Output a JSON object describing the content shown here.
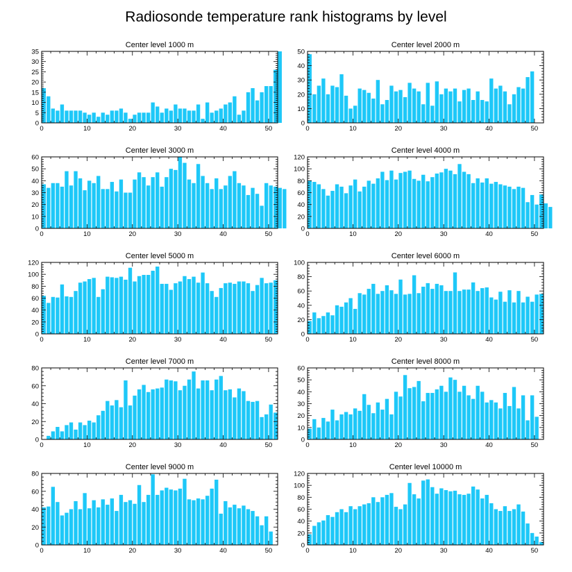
{
  "title": "Radiosonde temperature rank histograms by level",
  "colors": {
    "bar": "#1ec8f8",
    "axis": "#000000"
  },
  "chart_data": [
    {
      "type": "bar",
      "title": "Center level 1000 m",
      "xlim": [
        0,
        52
      ],
      "ylim": [
        0,
        35
      ],
      "xticks": [
        0,
        10,
        20,
        30,
        40,
        50
      ],
      "yticks": [
        0,
        5,
        10,
        15,
        20,
        25,
        30,
        35
      ],
      "values": [
        17,
        13,
        7,
        6,
        9,
        6,
        6,
        6,
        6,
        5,
        4,
        5,
        3,
        5,
        4,
        6,
        6,
        7,
        5,
        2,
        4,
        5,
        5,
        5,
        10,
        8,
        5,
        7,
        6,
        9,
        7,
        7,
        6,
        6,
        9,
        2,
        10,
        5,
        6,
        7,
        9,
        10,
        13,
        4,
        6,
        15,
        17,
        11,
        15,
        18,
        18,
        26,
        35
      ]
    },
    {
      "type": "bar",
      "title": "Center level 2000 m",
      "xlim": [
        0,
        52
      ],
      "ylim": [
        0,
        50
      ],
      "xticks": [
        0,
        10,
        20,
        30,
        40,
        50
      ],
      "yticks": [
        0,
        10,
        20,
        30,
        40,
        50
      ],
      "values": [
        48,
        20,
        26,
        31,
        20,
        26,
        25,
        34,
        19,
        10,
        12,
        24,
        23,
        21,
        17,
        30,
        13,
        16,
        26,
        22,
        23,
        18,
        28,
        24,
        22,
        13,
        28,
        12,
        29,
        20,
        24,
        22,
        24,
        15,
        23,
        24,
        16,
        22,
        16,
        15,
        31,
        24,
        26,
        22,
        13,
        20,
        25,
        24,
        32,
        36
      ]
    },
    {
      "type": "bar",
      "title": "Center level 3000 m",
      "xlim": [
        0,
        52
      ],
      "ylim": [
        0,
        60
      ],
      "xticks": [
        0,
        10,
        20,
        30,
        40,
        50
      ],
      "yticks": [
        0,
        10,
        20,
        30,
        40,
        50,
        60
      ],
      "values": [
        37,
        34,
        38,
        38,
        35,
        48,
        36,
        48,
        42,
        32,
        40,
        38,
        44,
        33,
        33,
        39,
        31,
        41,
        30,
        30,
        41,
        47,
        43,
        36,
        43,
        47,
        35,
        43,
        50,
        49,
        60,
        55,
        41,
        38,
        54,
        44,
        38,
        33,
        42,
        33,
        36,
        44,
        48,
        38,
        36,
        28,
        34,
        29,
        19,
        38,
        36,
        35,
        34,
        33
      ]
    },
    {
      "type": "bar",
      "title": "Center level 4000 m",
      "xlim": [
        0,
        52
      ],
      "ylim": [
        0,
        120
      ],
      "xticks": [
        0,
        10,
        20,
        30,
        40,
        50
      ],
      "yticks": [
        0,
        20,
        40,
        60,
        80,
        100,
        120
      ],
      "values": [
        80,
        78,
        74,
        66,
        55,
        63,
        74,
        70,
        59,
        72,
        82,
        62,
        70,
        80,
        75,
        84,
        95,
        81,
        97,
        82,
        93,
        95,
        97,
        83,
        80,
        90,
        79,
        86,
        92,
        94,
        100,
        97,
        91,
        108,
        95,
        91,
        76,
        84,
        77,
        84,
        75,
        78,
        74,
        72,
        70,
        66,
        70,
        68,
        44,
        56,
        40,
        57,
        42,
        36
      ]
    },
    {
      "type": "bar",
      "title": "Center level 5000 m",
      "xlim": [
        0,
        52
      ],
      "ylim": [
        0,
        120
      ],
      "xticks": [
        0,
        10,
        20,
        30,
        40,
        50
      ],
      "yticks": [
        0,
        20,
        40,
        60,
        80,
        100,
        120
      ],
      "values": [
        64,
        52,
        62,
        61,
        83,
        63,
        62,
        72,
        86,
        88,
        92,
        94,
        62,
        75,
        96,
        95,
        94,
        96,
        91,
        111,
        88,
        97,
        99,
        99,
        106,
        113,
        84,
        84,
        74,
        85,
        88,
        97,
        92,
        96,
        86,
        103,
        85,
        72,
        62,
        77,
        85,
        86,
        84,
        88,
        88,
        85,
        72,
        82,
        94,
        85,
        86,
        90
      ]
    },
    {
      "type": "bar",
      "title": "Center level 6000 m",
      "xlim": [
        0,
        52
      ],
      "ylim": [
        0,
        100
      ],
      "xticks": [
        0,
        10,
        20,
        30,
        40,
        50
      ],
      "yticks": [
        0,
        20,
        40,
        60,
        80,
        100
      ],
      "values": [
        18,
        30,
        22,
        25,
        30,
        26,
        40,
        38,
        44,
        50,
        35,
        57,
        55,
        63,
        70,
        56,
        60,
        68,
        61,
        56,
        76,
        55,
        56,
        82,
        57,
        66,
        71,
        63,
        70,
        68,
        60,
        60,
        86,
        60,
        62,
        62,
        72,
        60,
        64,
        65,
        51,
        48,
        59,
        45,
        61,
        44,
        60,
        44,
        52,
        45,
        55,
        56
      ]
    },
    {
      "type": "bar",
      "title": "Center level 7000 m",
      "xlim": [
        0,
        52
      ],
      "ylim": [
        0,
        80
      ],
      "xticks": [
        0,
        10,
        20,
        30,
        40,
        50
      ],
      "yticks": [
        0,
        20,
        40,
        60,
        80
      ],
      "values": [
        0,
        4,
        9,
        14,
        9,
        16,
        19,
        11,
        19,
        16,
        21,
        19,
        27,
        32,
        43,
        38,
        44,
        36,
        66,
        38,
        49,
        56,
        61,
        53,
        56,
        57,
        58,
        67,
        66,
        65,
        55,
        60,
        67,
        76,
        57,
        66,
        66,
        55,
        67,
        71,
        55,
        56,
        47,
        57,
        54,
        43,
        42,
        43,
        25,
        28,
        39,
        30
      ]
    },
    {
      "type": "bar",
      "title": "Center level 8000 m",
      "xlim": [
        0,
        52
      ],
      "ylim": [
        0,
        60
      ],
      "xticks": [
        0,
        10,
        20,
        30,
        40,
        50
      ],
      "yticks": [
        0,
        10,
        20,
        30,
        40,
        50,
        60
      ],
      "values": [
        9,
        17,
        10,
        18,
        15,
        25,
        16,
        21,
        23,
        21,
        26,
        24,
        38,
        29,
        22,
        31,
        25,
        34,
        21,
        40,
        36,
        54,
        43,
        44,
        49,
        32,
        39,
        39,
        42,
        45,
        40,
        52,
        50,
        40,
        45,
        37,
        34,
        45,
        40,
        31,
        33,
        31,
        26,
        39,
        28,
        44,
        26,
        37,
        16,
        37,
        19
      ]
    },
    {
      "type": "bar",
      "title": "Center level 9000 m",
      "xlim": [
        0,
        52
      ],
      "ylim": [
        0,
        80
      ],
      "xticks": [
        0,
        10,
        20,
        30,
        40,
        50
      ],
      "yticks": [
        0,
        20,
        40,
        60,
        80
      ],
      "values": [
        42,
        43,
        65,
        48,
        33,
        36,
        40,
        49,
        40,
        58,
        41,
        50,
        42,
        51,
        45,
        52,
        38,
        56,
        48,
        50,
        46,
        67,
        48,
        56,
        79,
        56,
        61,
        64,
        62,
        61,
        63,
        74,
        51,
        50,
        52,
        51,
        55,
        63,
        73,
        35,
        49,
        42,
        45,
        41,
        44,
        40,
        38,
        32,
        22,
        32,
        15
      ]
    },
    {
      "type": "bar",
      "title": "Center level 10000 m",
      "xlim": [
        0,
        52
      ],
      "ylim": [
        0,
        120
      ],
      "xticks": [
        0,
        10,
        20,
        30,
        40,
        50
      ],
      "yticks": [
        0,
        20,
        40,
        60,
        80,
        100,
        120
      ],
      "values": [
        18,
        32,
        38,
        41,
        50,
        47,
        55,
        60,
        55,
        65,
        60,
        65,
        68,
        70,
        80,
        72,
        80,
        84,
        87,
        64,
        60,
        68,
        104,
        85,
        78,
        108,
        110,
        97,
        86,
        95,
        92,
        90,
        91,
        85,
        84,
        86,
        98,
        93,
        78,
        84,
        70,
        60,
        57,
        65,
        57,
        60,
        68,
        56,
        36,
        20,
        14,
        5
      ]
    }
  ]
}
